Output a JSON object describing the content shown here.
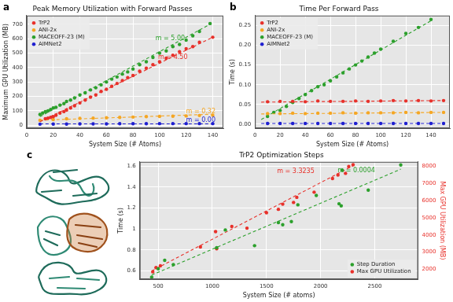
{
  "chart_data": [
    {
      "panel": "a",
      "type": "scatter",
      "title": "Peak Memory Utilization with Forward Passes",
      "x_label": "System Size (# Atoms)",
      "y_label": "Maximum GPU Utilization (MB)",
      "xlim": [
        0,
        148
      ],
      "xticks": [
        0,
        20,
        40,
        60,
        80,
        100,
        120,
        140
      ],
      "ylim": [
        -20,
        760
      ],
      "yticks": [
        0,
        100,
        200,
        300,
        400,
        500,
        600,
        700
      ],
      "grid": true,
      "legend": "upper left",
      "series": [
        {
          "name": "TrP2",
          "color": "#e8302a",
          "marker": "circle",
          "x": [
            14,
            16,
            18,
            20,
            22,
            25,
            28,
            30,
            33,
            36,
            40,
            44,
            48,
            52,
            56,
            60,
            64,
            68,
            72,
            76,
            80,
            85,
            90,
            95,
            100,
            105,
            110,
            115,
            120,
            125,
            130,
            140
          ],
          "values": [
            45,
            50,
            55,
            60,
            70,
            85,
            95,
            105,
            120,
            135,
            155,
            175,
            195,
            210,
            235,
            250,
            270,
            290,
            310,
            330,
            345,
            375,
            395,
            420,
            440,
            465,
            485,
            510,
            530,
            545,
            575,
            610
          ],
          "fit": {
            "x": [
              10,
              140
            ],
            "values": [
              25,
              610
            ],
            "line_style": "dashed"
          },
          "slope_label": {
            "text": "m = 4.50",
            "x": 110,
            "y": 470
          }
        },
        {
          "name": "ANI-2x",
          "color": "#f5a623",
          "marker": "circle",
          "x": [
            10,
            20,
            30,
            40,
            50,
            60,
            70,
            80,
            90,
            100,
            110,
            120,
            130,
            140
          ],
          "values": [
            35,
            40,
            45,
            48,
            50,
            52,
            55,
            57,
            60,
            62,
            63,
            65,
            68,
            70
          ],
          "fit": {
            "x": [
              10,
              140
            ],
            "values": [
              35,
              77
            ],
            "line_style": "dashed"
          },
          "slope_label": {
            "text": "m = 0.32",
            "x": 131,
            "y": 95
          }
        },
        {
          "name": "MACEOFF-23 (M)",
          "color": "#2ca02c",
          "marker": "circle",
          "x": [
            10,
            12,
            14,
            16,
            18,
            20,
            22,
            25,
            28,
            30,
            33,
            36,
            40,
            44,
            48,
            52,
            56,
            60,
            64,
            68,
            72,
            76,
            80,
            85,
            90,
            95,
            100,
            105,
            110,
            115,
            120,
            125,
            130,
            138
          ],
          "values": [
            75,
            85,
            95,
            100,
            110,
            120,
            125,
            140,
            150,
            165,
            175,
            190,
            210,
            225,
            245,
            260,
            280,
            300,
            320,
            335,
            355,
            370,
            390,
            420,
            440,
            470,
            500,
            515,
            545,
            560,
            590,
            620,
            650,
            705
          ],
          "fit": {
            "x": [
              10,
              138
            ],
            "values": [
              60,
              700
            ],
            "line_style": "dashed"
          },
          "slope_label": {
            "text": "m = 5.00",
            "x": 108,
            "y": 600
          }
        },
        {
          "name": "AIMNet2",
          "color": "#1f1fd0",
          "marker": "circle",
          "x": [
            10,
            20,
            30,
            40,
            50,
            60,
            70,
            80,
            90,
            100,
            110,
            120,
            130,
            140
          ],
          "values": [
            8,
            9,
            9,
            10,
            10,
            10,
            11,
            11,
            11,
            12,
            12,
            12,
            12,
            12
          ],
          "fit": {
            "x": [
              10,
              140
            ],
            "values": [
              10,
              10
            ],
            "line_style": "dashed"
          },
          "slope_label": {
            "text": "m = 0.00",
            "x": 131,
            "y": 35
          }
        }
      ]
    },
    {
      "panel": "b",
      "type": "scatter",
      "title": "Time Per Forward Pass",
      "x_label": "System Size (# Atoms)",
      "y_label": "Time (s)",
      "xlim": [
        0,
        155
      ],
      "xticks": [
        0,
        20,
        40,
        60,
        80,
        100,
        120,
        140
      ],
      "ylim": [
        -0.01,
        0.275
      ],
      "yticks": [
        {
          "value": 0,
          "label": "0.00"
        },
        0.05,
        {
          "value": 0.1,
          "label": "0.10"
        },
        0.15,
        {
          "value": 0.2,
          "label": "0.20"
        },
        0.25
      ],
      "grid": true,
      "legend": "upper left",
      "series": [
        {
          "name": "TrP2",
          "color": "#e8302a",
          "marker": "circle",
          "x": [
            10,
            20,
            30,
            40,
            50,
            60,
            70,
            80,
            90,
            100,
            110,
            120,
            130,
            140,
            150
          ],
          "values": [
            0.057,
            0.058,
            0.058,
            0.057,
            0.059,
            0.058,
            0.058,
            0.059,
            0.058,
            0.059,
            0.06,
            0.059,
            0.06,
            0.059,
            0.06
          ],
          "fit": {
            "x": [
              5,
              150
            ],
            "values": [
              0.056,
              0.06
            ],
            "line_style": "dashed"
          }
        },
        {
          "name": "ANI-2x",
          "color": "#f5a623",
          "marker": "circle",
          "x": [
            10,
            20,
            30,
            40,
            50,
            60,
            70,
            80,
            90,
            100,
            110,
            120,
            130,
            140,
            150
          ],
          "values": [
            0.027,
            0.027,
            0.028,
            0.027,
            0.028,
            0.028,
            0.029,
            0.028,
            0.029,
            0.029,
            0.029,
            0.03,
            0.029,
            0.03,
            0.03
          ],
          "fit": {
            "x": [
              5,
              150
            ],
            "values": [
              0.026,
              0.03
            ],
            "line_style": "dashed"
          }
        },
        {
          "name": "MACEOFF-23 (M)",
          "color": "#2ca02c",
          "marker": "circle",
          "x": [
            10,
            15,
            20,
            25,
            30,
            35,
            40,
            45,
            50,
            55,
            60,
            65,
            70,
            75,
            80,
            85,
            90,
            95,
            100,
            110,
            120,
            130,
            140
          ],
          "values": [
            0.02,
            0.03,
            0.035,
            0.045,
            0.055,
            0.065,
            0.075,
            0.085,
            0.095,
            0.1,
            0.11,
            0.12,
            0.13,
            0.14,
            0.15,
            0.16,
            0.17,
            0.18,
            0.19,
            0.21,
            0.23,
            0.245,
            0.265
          ],
          "fit": {
            "x": [
              5,
              140
            ],
            "values": [
              0.012,
              0.262
            ],
            "line_style": "dashed"
          }
        },
        {
          "name": "AIMNet2",
          "color": "#1f1fd0",
          "marker": "circle",
          "x": [
            10,
            20,
            30,
            40,
            50,
            60,
            70,
            80,
            90,
            100,
            110,
            120,
            130,
            140,
            150
          ],
          "values": [
            0.002,
            0.002,
            0.002,
            0.002,
            0.002,
            0.002,
            0.002,
            0.002,
            0.002,
            0.002,
            0.002,
            0.002,
            0.002,
            0.002,
            0.002
          ],
          "fit": {
            "x": [
              5,
              150
            ],
            "values": [
              0.002,
              0.002
            ],
            "line_style": "dashed"
          }
        }
      ]
    },
    {
      "panel": "c",
      "type": "scatter",
      "title": "TrP2 Optimization Steps",
      "x_label": "System Size (# atoms)",
      "y_label": "Time (s)",
      "y2_label": "Max GPU Utilization (MB)",
      "xlim": [
        330,
        2900
      ],
      "xticks": [
        500,
        1000,
        1500,
        2000,
        2500
      ],
      "ylim": [
        0.52,
        1.64
      ],
      "yticks": [
        0.6,
        0.8,
        1,
        1.2,
        1.4,
        1.6
      ],
      "y2lim": [
        1420,
        8270
      ],
      "y2ticks": [
        2000,
        3000,
        4000,
        5000,
        6000,
        7000,
        8000
      ],
      "yticks_labels": null,
      "grid": true,
      "legend": "lower right",
      "series": [
        {
          "name": "Step Duration",
          "color": "#2ca02c",
          "marker": "circle",
          "x": [
            440,
            500,
            560,
            640,
            1040,
            1120,
            1390,
            1610,
            1650,
            1730,
            1790,
            1960,
            2170,
            2190,
            2200,
            2440,
            2740
          ],
          "values": [
            0.54,
            0.62,
            0.7,
            0.66,
            0.82,
            0.99,
            0.84,
            1.06,
            1.04,
            1.07,
            1.23,
            1.32,
            1.24,
            1.22,
            1.56,
            1.37,
            1.61
          ],
          "fit": {
            "x": [
              440,
              2740
            ],
            "values": [
              0.56,
              1.57
            ],
            "line_style": "dashed"
          },
          "slope_label": {
            "text": "m = 0.0004",
            "x": 2330,
            "y": 1.56
          }
        },
        {
          "name": "Max GPU Utilization",
          "color": "#e8302a",
          "marker": "circle",
          "axis": "y2",
          "x": [
            450,
            480,
            520,
            890,
            1030,
            1040,
            1180,
            1320,
            1500,
            1610,
            1650,
            1750,
            1780,
            1940,
            2110,
            2160,
            2230,
            2260,
            2300
          ],
          "values": [
            1850,
            2100,
            2200,
            3300,
            4200,
            3200,
            4500,
            4400,
            5300,
            5500,
            5800,
            5900,
            6200,
            6500,
            7300,
            7500,
            7600,
            8000,
            8100
          ],
          "fit": {
            "x": [
              440,
              2300
            ],
            "values": [
              1900,
              8050
            ],
            "line_style": "dashed"
          },
          "slope_label": {
            "text": "m = 3.3235",
            "x": 1770,
            "y": 7700
          }
        }
      ]
    }
  ]
}
